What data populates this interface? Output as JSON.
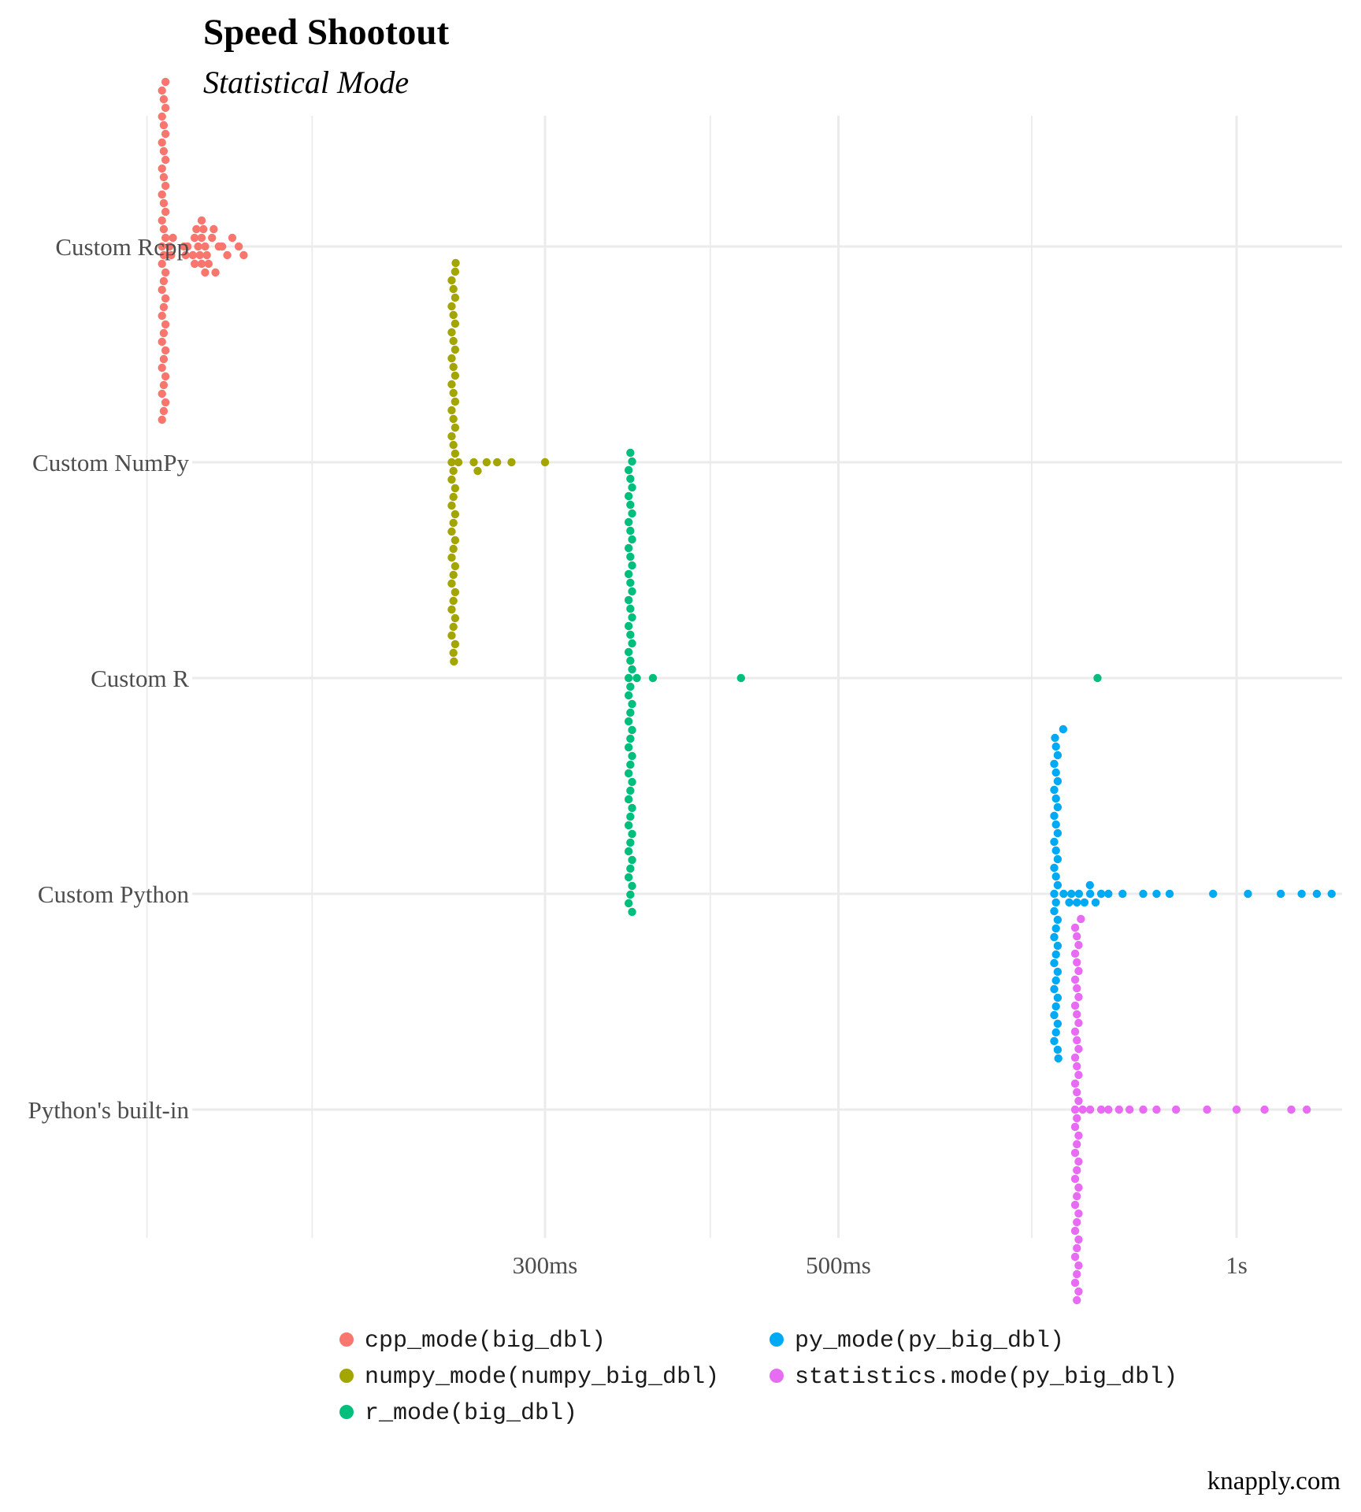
{
  "chart_data": {
    "type": "scatter",
    "title": "Speed Shootout",
    "subtitle": "Statistical Mode",
    "caption": "knapply.com",
    "xlabel": "",
    "ylabel": "",
    "x_scale": "log",
    "x_unit": "ms",
    "xlim": [
      125,
      1200
    ],
    "x_ticks": [
      {
        "value": 300,
        "label": "300ms"
      },
      {
        "value": 500,
        "label": "500ms"
      },
      {
        "value": 1000,
        "label": "1s"
      }
    ],
    "x_minor_gridlines": [
      150,
      200,
      400,
      700
    ],
    "categories": [
      "Custom Rcpp",
      "Custom NumPy",
      "Custom R",
      "Custom Python",
      "Python's built-in"
    ],
    "legend_position": "bottom",
    "series": [
      {
        "name": "cpp_mode(big_dbl)",
        "category": "Custom Rcpp",
        "color": "#F8766D",
        "values": [
          154,
          154,
          154,
          154,
          154,
          154,
          154,
          154,
          154,
          154,
          154,
          154,
          154,
          154,
          154,
          154,
          154,
          154,
          154,
          154,
          154,
          154,
          154,
          154,
          154,
          154,
          154,
          154,
          154,
          154,
          154,
          154,
          154,
          154,
          154,
          154,
          154,
          154,
          154,
          154,
          156,
          156,
          156,
          160,
          160,
          161,
          162,
          162,
          163,
          163,
          164,
          164,
          164,
          165,
          165,
          165,
          165,
          166,
          166,
          167,
          167,
          168,
          168,
          170,
          171,
          172,
          173,
          176,
          177
        ]
      },
      {
        "name": "numpy_mode(numpy_big_dbl)",
        "category": "Custom NumPy",
        "color": "#A3A500",
        "values": [
          255,
          255,
          255,
          255,
          255,
          255,
          255,
          255,
          255,
          255,
          255,
          255,
          255,
          255,
          255,
          255,
          255,
          255,
          255,
          255,
          255,
          255,
          255,
          255,
          255,
          255,
          255,
          255,
          255,
          255,
          255,
          255,
          255,
          255,
          255,
          255,
          255,
          255,
          255,
          255,
          255,
          255,
          255,
          255,
          255,
          256,
          256,
          258,
          265,
          266,
          271,
          276,
          283,
          300
        ]
      },
      {
        "name": "r_mode(big_dbl)",
        "category": "Custom R",
        "color": "#00BF7D",
        "values": [
          347,
          347,
          347,
          347,
          347,
          347,
          347,
          347,
          347,
          347,
          347,
          347,
          347,
          347,
          347,
          347,
          347,
          347,
          347,
          347,
          347,
          347,
          347,
          347,
          347,
          347,
          347,
          347,
          347,
          347,
          347,
          347,
          347,
          347,
          347,
          347,
          347,
          347,
          347,
          347,
          347,
          347,
          347,
          347,
          347,
          347,
          347,
          347,
          347,
          347,
          347,
          347,
          347,
          347,
          352,
          362,
          422,
          785
        ]
      },
      {
        "name": "py_mode(py_big_dbl)",
        "category": "Custom Python",
        "color": "#00A9F4",
        "values": [
          728,
          728,
          728,
          728,
          728,
          728,
          728,
          728,
          728,
          728,
          728,
          728,
          728,
          728,
          728,
          728,
          728,
          728,
          728,
          728,
          728,
          728,
          728,
          728,
          728,
          728,
          728,
          728,
          728,
          728,
          728,
          728,
          728,
          728,
          728,
          728,
          729,
          731,
          735,
          740,
          745,
          750,
          755,
          760,
          765,
          770,
          775,
          780,
          790,
          800,
          820,
          850,
          870,
          890,
          960,
          1020,
          1080,
          1120,
          1150,
          1180
        ]
      },
      {
        "name": "statistics.mode(py_big_dbl)",
        "category": "Python's built-in",
        "color": "#E76BF3",
        "values": [
          755,
          755,
          755,
          755,
          755,
          755,
          755,
          755,
          755,
          755,
          755,
          755,
          755,
          755,
          755,
          755,
          755,
          755,
          755,
          755,
          755,
          755,
          755,
          755,
          755,
          755,
          755,
          755,
          755,
          755,
          755,
          755,
          755,
          755,
          755,
          755,
          755,
          755,
          755,
          755,
          755,
          755,
          755,
          755,
          758,
          765,
          775,
          790,
          800,
          815,
          830,
          850,
          870,
          900,
          950,
          1000,
          1050,
          1100,
          1130
        ]
      }
    ]
  }
}
